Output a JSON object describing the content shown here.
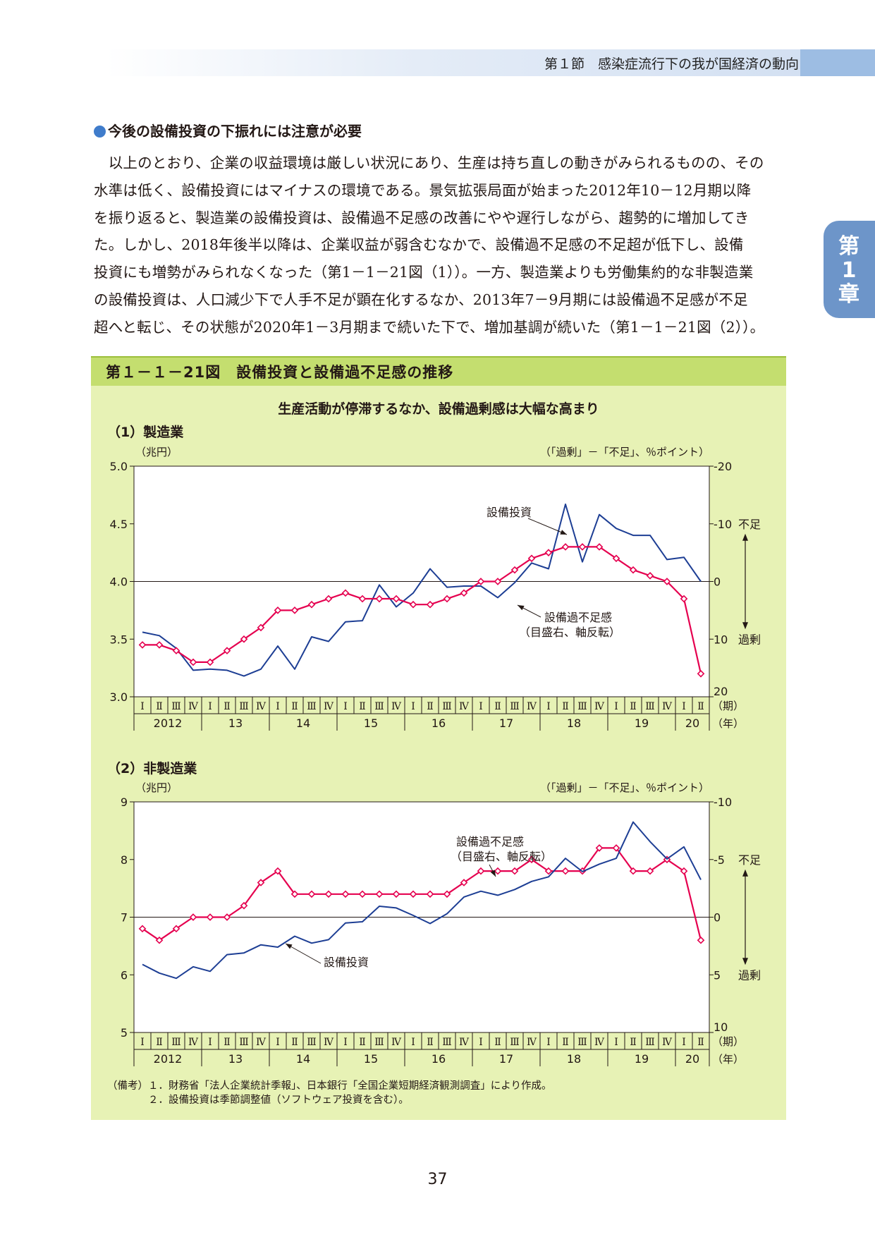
{
  "header": {
    "title": "第１節　感染症流行下の我が国経済の動向"
  },
  "side_tab": {
    "chars": [
      "第",
      "1",
      "章"
    ]
  },
  "section": {
    "heading": "今後の設備投資の下振れには注意が必要"
  },
  "paragraph": {
    "lines": [
      "　以上のとおり、企業の収益環境は厳しい状況にあり、生産は持ち直しの動きがみられるものの、その",
      "水準は低く、設備投資にはマイナスの環境である。景気拡張局面が始まった2012年10－12月期以降",
      "を振り返ると、製造業の設備投資は、設備過不足感の改善にやや遅行しながら、趨勢的に増加してき",
      "た。しかし、2018年後半以降は、企業収益が弱含むなかで、設備過不足感の不足超が低下し、設備",
      "投資にも増勢がみられなくなった（第1－1－21図（1））。一方、製造業よりも労働集約的な非製造業",
      "の設備投資は、人口減少下で人手不足が顕在化するなか、2013年7－9月期には設備過不足感が不足",
      "超へと転じ、その状態が2020年1－3月期まで続いた下で、増加基調が続いた（第1－1－21図（2））。"
    ]
  },
  "figure": {
    "title": "第１－１－21図　設備投資と設備過不足感の推移",
    "subtitle": "生産活動が停滞するなか、設備過剰感は大幅な高まり"
  },
  "chart_data": [
    {
      "type": "line",
      "panel_label": "（1）製造業",
      "y_unit_left": "（兆円）",
      "y_unit_right": "（「過剰」－「不足」、％ポイント）",
      "ylim_left": [
        3.0,
        5.0
      ],
      "yticks_left": [
        "3.0",
        "3.5",
        "4.0",
        "4.5",
        "5.0"
      ],
      "ylim_right": [
        20,
        -20
      ],
      "right_axis_inverted": true,
      "yticks_right": [
        "20",
        "10",
        "0",
        "-10",
        "-20"
      ],
      "right_side_labels": {
        "up": "不足",
        "down": "過剰"
      },
      "x_quarters": [
        "Ⅰ",
        "Ⅱ",
        "Ⅲ",
        "Ⅳ",
        "Ⅰ",
        "Ⅱ",
        "Ⅲ",
        "Ⅳ",
        "Ⅰ",
        "Ⅱ",
        "Ⅲ",
        "Ⅳ",
        "Ⅰ",
        "Ⅱ",
        "Ⅲ",
        "Ⅳ",
        "Ⅰ",
        "Ⅱ",
        "Ⅲ",
        "Ⅳ",
        "Ⅰ",
        "Ⅱ",
        "Ⅲ",
        "Ⅳ",
        "Ⅰ",
        "Ⅱ",
        "Ⅲ",
        "Ⅳ",
        "Ⅰ",
        "Ⅱ",
        "Ⅲ",
        "Ⅳ",
        "Ⅰ",
        "Ⅱ"
      ],
      "x_years": [
        "2012",
        "13",
        "14",
        "15",
        "16",
        "17",
        "18",
        "19",
        "20"
      ],
      "x_period_label": "（期）",
      "x_year_label": "（年）",
      "series": [
        {
          "name": "設備投資",
          "axis": "left",
          "color": "#1d3e94",
          "values": [
            3.56,
            3.53,
            3.42,
            3.23,
            3.24,
            3.23,
            3.18,
            3.24,
            3.44,
            3.24,
            3.52,
            3.48,
            3.65,
            3.66,
            3.97,
            3.78,
            3.9,
            4.11,
            3.95,
            3.96,
            3.96,
            3.86,
            3.99,
            4.16,
            4.11,
            4.67,
            4.17,
            4.58,
            4.46,
            4.4,
            4.4,
            4.19,
            4.21,
            4.0
          ]
        },
        {
          "name": "設備過不足感",
          "label_sub": "（目盛右、軸反転）",
          "axis": "right",
          "color": "#e5004f",
          "values": [
            11,
            11,
            12,
            14,
            14,
            12,
            10,
            8,
            5,
            5,
            4,
            3,
            2,
            3,
            3,
            3,
            4,
            4,
            3,
            2,
            0,
            0,
            -2,
            -4,
            -5,
            -6,
            -6,
            -6,
            -4,
            -2,
            -1,
            0,
            3,
            16
          ]
        }
      ]
    },
    {
      "type": "line",
      "panel_label": "（2）非製造業",
      "y_unit_left": "（兆円）",
      "y_unit_right": "（「過剰」－「不足」、％ポイント）",
      "ylim_left": [
        5,
        9
      ],
      "yticks_left": [
        "5",
        "6",
        "7",
        "8",
        "9"
      ],
      "ylim_right": [
        10,
        -10
      ],
      "right_axis_inverted": true,
      "yticks_right": [
        "10",
        "5",
        "0",
        "-5",
        "-10"
      ],
      "right_side_labels": {
        "up": "不足",
        "down": "過剰"
      },
      "x_quarters": [
        "Ⅰ",
        "Ⅱ",
        "Ⅲ",
        "Ⅳ",
        "Ⅰ",
        "Ⅱ",
        "Ⅲ",
        "Ⅳ",
        "Ⅰ",
        "Ⅱ",
        "Ⅲ",
        "Ⅳ",
        "Ⅰ",
        "Ⅱ",
        "Ⅲ",
        "Ⅳ",
        "Ⅰ",
        "Ⅱ",
        "Ⅲ",
        "Ⅳ",
        "Ⅰ",
        "Ⅱ",
        "Ⅲ",
        "Ⅳ",
        "Ⅰ",
        "Ⅱ",
        "Ⅲ",
        "Ⅳ",
        "Ⅰ",
        "Ⅱ",
        "Ⅲ",
        "Ⅳ",
        "Ⅰ",
        "Ⅱ"
      ],
      "x_years": [
        "2012",
        "13",
        "14",
        "15",
        "16",
        "17",
        "18",
        "19",
        "20"
      ],
      "x_period_label": "（期）",
      "x_year_label": "（年）",
      "series": [
        {
          "name": "設備過不足感",
          "label_sub": "（目盛右、軸反転）",
          "axis": "right",
          "color": "#e5004f",
          "values": [
            1,
            2,
            1,
            0,
            0,
            0,
            -1,
            -3,
            -4,
            -2,
            -2,
            -2,
            -2,
            -2,
            -2,
            -2,
            -2,
            -2,
            -2,
            -3,
            -4,
            -4,
            -4,
            -5,
            -4,
            -4,
            -4,
            -6,
            -6,
            -4,
            -4,
            -5,
            -4,
            2
          ]
        },
        {
          "name": "設備投資",
          "axis": "left",
          "color": "#1d3e94",
          "values": [
            6.18,
            6.03,
            5.94,
            6.14,
            6.06,
            6.35,
            6.38,
            6.52,
            6.48,
            6.67,
            6.55,
            6.61,
            6.9,
            6.92,
            7.19,
            7.16,
            7.03,
            6.89,
            7.06,
            7.35,
            7.45,
            7.38,
            7.48,
            7.62,
            7.7,
            8.02,
            7.79,
            7.92,
            8.02,
            8.65,
            8.31,
            8.01,
            8.22,
            7.65
          ]
        }
      ]
    }
  ],
  "notes": [
    "（備考）１．財務省「法人企業統計季報」、日本銀行「全国企業短期経済観測調査」により作成。",
    "　　　　２．設備投資は季節調整値（ソフトウェア投資を含む）。"
  ],
  "page_number": "37"
}
